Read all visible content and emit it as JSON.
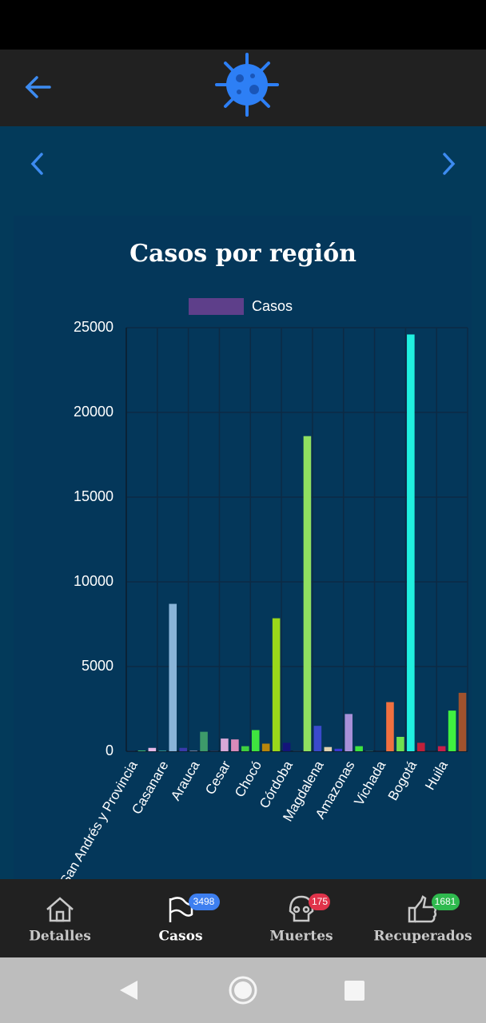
{
  "chart_data": {
    "type": "bar",
    "title": "Casos por región",
    "categories": [
      "San Andrés y Provincia",
      null,
      null,
      "Casanare",
      null,
      null,
      "Arauca",
      null,
      null,
      "Cesar",
      null,
      null,
      "Chocó",
      null,
      null,
      "Córdoba",
      null,
      null,
      "Magdalena",
      null,
      null,
      "Amazonas",
      null,
      null,
      "Vichada",
      null,
      null,
      "Bogotá",
      null,
      null,
      "Huila",
      null,
      null
    ],
    "series": [
      {
        "name": "Casos",
        "color": "#5e3f8a",
        "colors": [
          "#3b3b8a",
          "#3cb371",
          "#e6b8e6",
          "#2e8b8b",
          "#8ab4d8",
          "#3a3aaa",
          "#6a7a9a",
          "#3d9a6a",
          "#4a4a7a",
          "#d8a8d8",
          "#d88aba",
          "#3fd03f",
          "#3fe43f",
          "#b8860b",
          "#9ad81a",
          "#14147a",
          "#2a4a6a",
          "#90e060",
          "#3a4acc",
          "#e0d2b0",
          "#3a3ad0",
          "#a890d8",
          "#3fe43f",
          "#2a6a6a",
          "#3a3a6a",
          "#f07040",
          "#70e050",
          "#20f0e0",
          "#c0203a",
          "#3a3a5a",
          "#c8204a",
          "#40f040",
          "#a0522d"
        ],
        "values": [
          10,
          50,
          200,
          50,
          8700,
          200,
          50,
          1150,
          20,
          750,
          700,
          300,
          1250,
          450,
          7850,
          500,
          20,
          18600,
          1500,
          250,
          150,
          2200,
          300,
          30,
          10,
          2900,
          850,
          24600,
          500,
          10,
          300,
          2400,
          3450
        ]
      }
    ],
    "ylim": [
      0,
      25000
    ],
    "yticks": [
      0,
      5000,
      10000,
      15000,
      20000,
      25000
    ],
    "grid": true,
    "legend": "top"
  },
  "nav_bar": {
    "items": [
      {
        "label": "Detalles"
      },
      {
        "label": "Casos",
        "badge": 3498
      },
      {
        "label": "Muertes",
        "badge": 175
      },
      {
        "label": "Recuperados",
        "badge": 1681
      }
    ]
  }
}
